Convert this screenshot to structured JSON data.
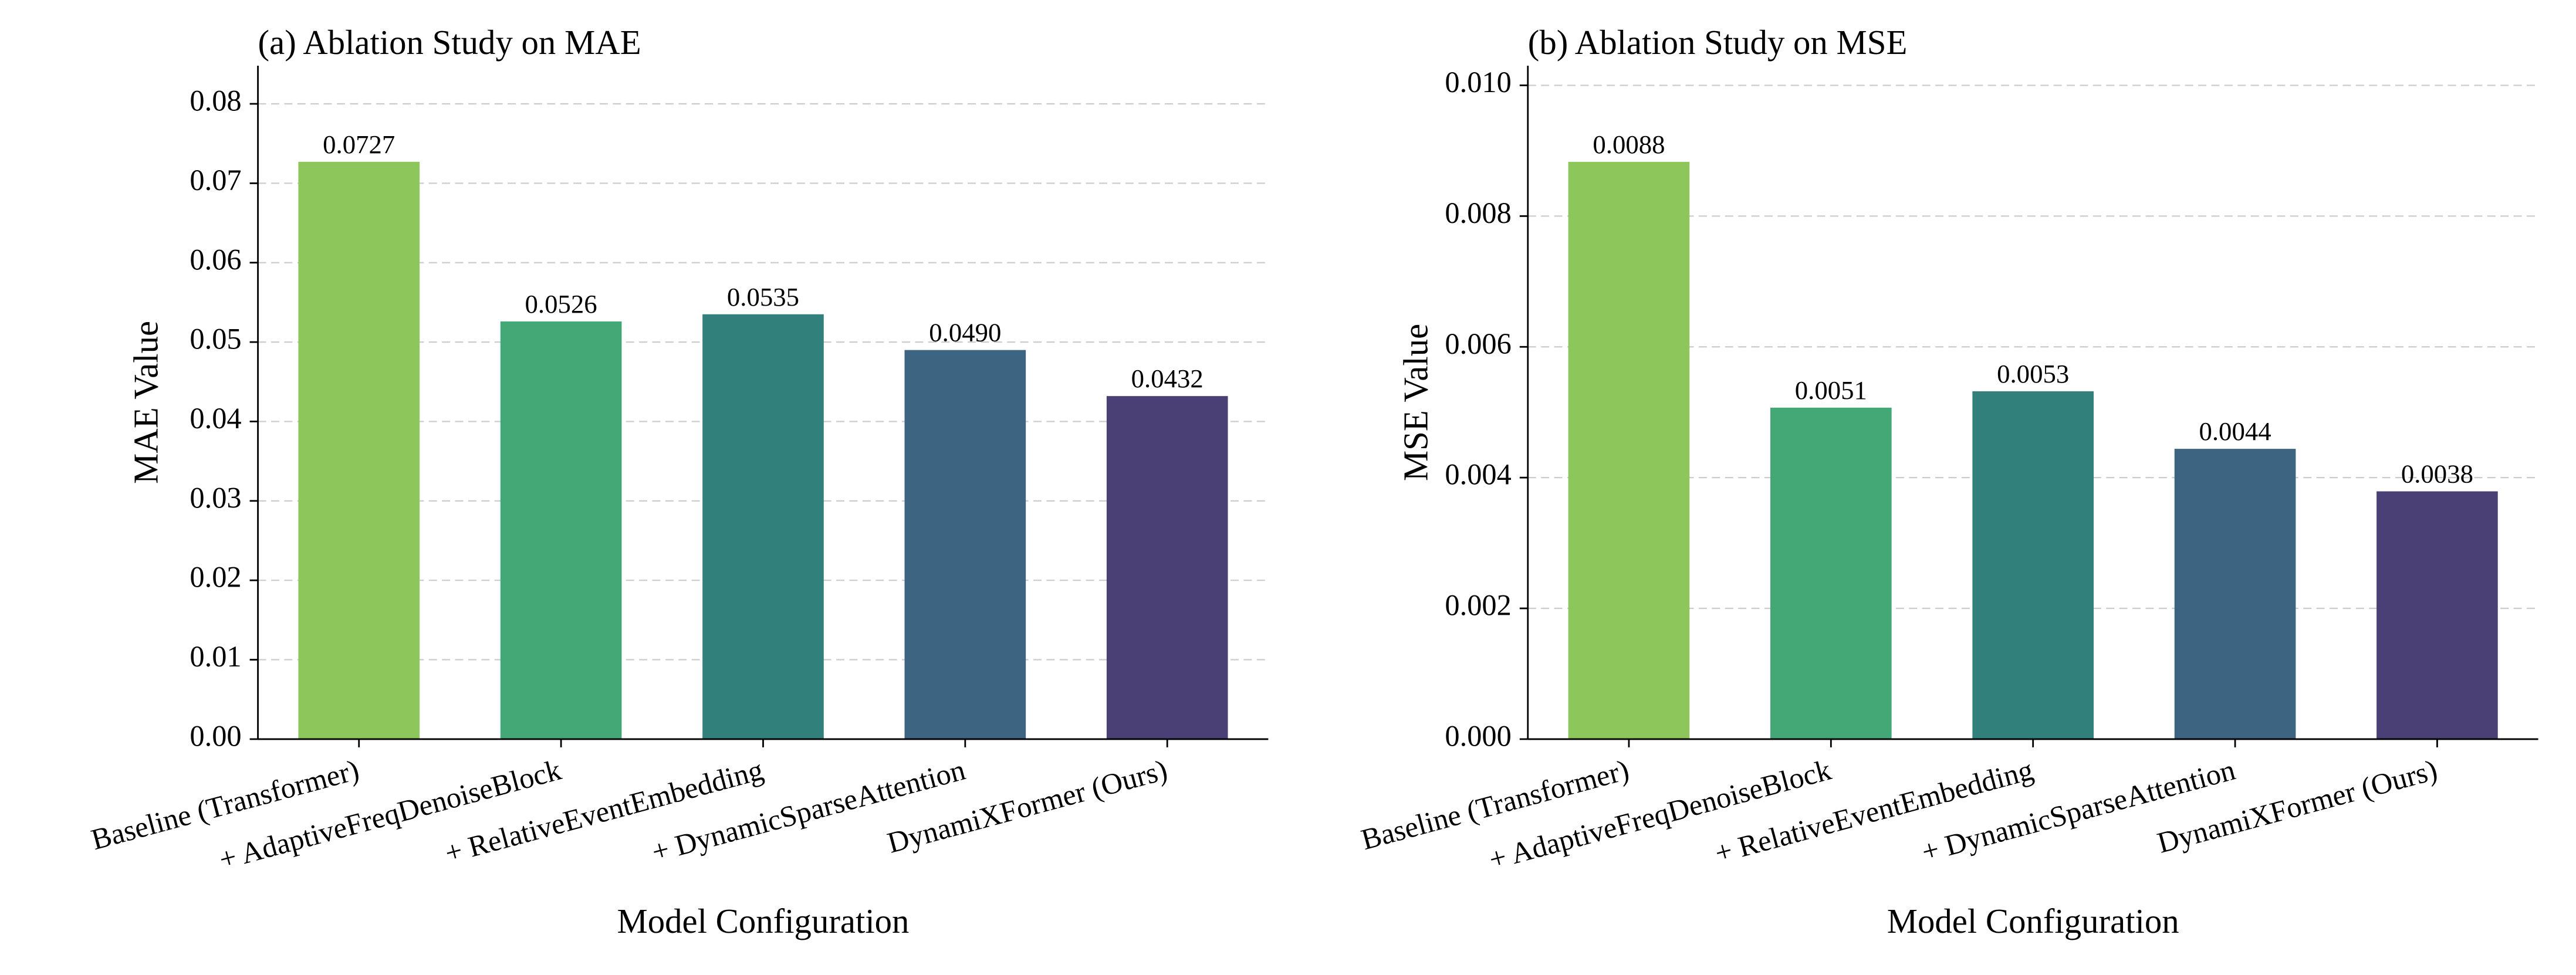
{
  "chart_data": [
    {
      "type": "bar",
      "title": "(a) Ablation Study on MAE",
      "xlabel": "Model Configuration",
      "ylabel": "MAE Value",
      "categories": [
        "Baseline (Transformer)",
        "+ AdaptiveFreqDenoiseBlock",
        "+ RelativeEventEmbedding",
        "+ DynamicSparseAttention",
        "DynamiXFormer (Ours)"
      ],
      "values": [
        0.0727,
        0.0526,
        0.0535,
        0.049,
        0.0432
      ],
      "value_labels": [
        "0.0727",
        "0.0526",
        "0.0535",
        "0.0490",
        "0.0432"
      ],
      "colors": [
        "#8dc65a",
        "#43a776",
        "#31807b",
        "#3d6480",
        "#4a4076"
      ],
      "ylim": [
        0,
        0.0848
      ],
      "yticks": [
        {
          "value": 0,
          "label": "0.00"
        },
        {
          "value": 0.01,
          "label": "0.01"
        },
        {
          "value": 0.02,
          "label": "0.02"
        },
        {
          "value": 0.03,
          "label": "0.03"
        },
        {
          "value": 0.04,
          "label": "0.04"
        },
        {
          "value": 0.05,
          "label": "0.05"
        },
        {
          "value": 0.06,
          "label": "0.06"
        },
        {
          "value": 0.07,
          "label": "0.07"
        },
        {
          "value": 0.08,
          "label": "0.08"
        }
      ],
      "grid": true
    },
    {
      "type": "bar",
      "title": "(b) Ablation Study on MSE",
      "xlabel": "Model Configuration",
      "ylabel": "MSE Value",
      "categories": [
        "Baseline (Transformer)",
        "+ AdaptiveFreqDenoiseBlock",
        "+ RelativeEventEmbedding",
        "+ DynamicSparseAttention",
        "DynamiXFormer (Ours)"
      ],
      "values": [
        0.00883,
        0.00507,
        0.00532,
        0.00444,
        0.00379
      ],
      "value_labels": [
        "0.0088",
        "0.0051",
        "0.0053",
        "0.0044",
        "0.0038"
      ],
      "colors": [
        "#8dc65a",
        "#43a776",
        "#31807b",
        "#3d6480",
        "#4a4076"
      ],
      "ylim": [
        0,
        0.0103
      ],
      "yticks": [
        {
          "value": 0,
          "label": "0.000"
        },
        {
          "value": 0.002,
          "label": "0.002"
        },
        {
          "value": 0.004,
          "label": "0.004"
        },
        {
          "value": 0.006,
          "label": "0.006"
        },
        {
          "value": 0.008,
          "label": "0.008"
        },
        {
          "value": 0.01,
          "label": "0.010"
        }
      ],
      "grid": true
    }
  ]
}
